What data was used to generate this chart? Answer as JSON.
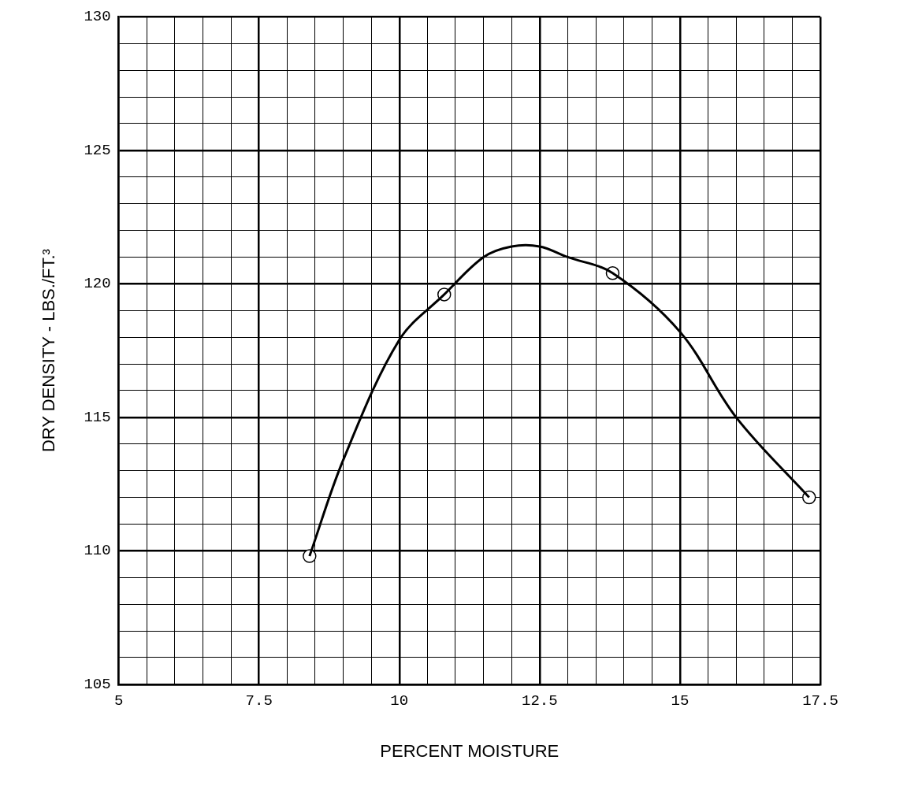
{
  "chart_data": {
    "type": "scatter",
    "xlabel": "PERCENT MOISTURE",
    "ylabel": "DRY DENSITY - LBS./FT.³",
    "xlim": [
      5,
      17.5
    ],
    "ylim": [
      105,
      130
    ],
    "xticks": [
      5,
      {
        "value": 5.5,
        "label": null
      },
      {
        "value": 6,
        "label": null
      },
      {
        "value": 6.5,
        "label": null
      },
      {
        "value": 7,
        "label": null
      },
      7.5,
      {
        "value": 8,
        "label": null
      },
      {
        "value": 8.5,
        "label": null
      },
      {
        "value": 9,
        "label": null
      },
      {
        "value": 9.5,
        "label": null
      },
      10,
      {
        "value": 10.5,
        "label": null
      },
      {
        "value": 11,
        "label": null
      },
      {
        "value": 11.5,
        "label": null
      },
      {
        "value": 12,
        "label": null
      },
      12.5,
      {
        "value": 13,
        "label": null
      },
      {
        "value": 13.5,
        "label": null
      },
      {
        "value": 14,
        "label": null
      },
      {
        "value": 14.5,
        "label": null
      },
      15,
      {
        "value": 15.5,
        "label": null
      },
      {
        "value": 16,
        "label": null
      },
      {
        "value": 16.5,
        "label": null
      },
      {
        "value": 17,
        "label": null
      },
      17.5
    ],
    "yticks": [
      105,
      {
        "value": 106,
        "label": null
      },
      {
        "value": 107,
        "label": null
      },
      {
        "value": 108,
        "label": null
      },
      {
        "value": 109,
        "label": null
      },
      110,
      {
        "value": 111,
        "label": null
      },
      {
        "value": 112,
        "label": null
      },
      {
        "value": 113,
        "label": null
      },
      {
        "value": 114,
        "label": null
      },
      115,
      {
        "value": 116,
        "label": null
      },
      {
        "value": 117,
        "label": null
      },
      {
        "value": 118,
        "label": null
      },
      {
        "value": 119,
        "label": null
      },
      120,
      {
        "value": 121,
        "label": null
      },
      {
        "value": 122,
        "label": null
      },
      {
        "value": 123,
        "label": null
      },
      {
        "value": 124,
        "label": null
      },
      125,
      {
        "value": 126,
        "label": null
      },
      {
        "value": 127,
        "label": null
      },
      {
        "value": 128,
        "label": null
      },
      {
        "value": 129,
        "label": null
      },
      130
    ],
    "grid": true,
    "legend": false,
    "series": [
      {
        "type": "line",
        "color": "#000000",
        "marker": "none",
        "x": [
          8.4,
          9,
          10,
          10.8,
          11.5,
          12,
          12.5,
          13,
          13.8,
          15,
          16,
          17.3
        ],
        "values": [
          109.8,
          113.4,
          117.9,
          119.6,
          121.0,
          121.4,
          121.4,
          121.0,
          120.4,
          118.2,
          115.0,
          112.0
        ]
      },
      {
        "color": "#000000",
        "marker": "circle",
        "x": [
          8.4,
          10.8,
          13.8,
          17.3
        ],
        "values": [
          109.8,
          119.6,
          120.4,
          112.0
        ]
      }
    ]
  }
}
